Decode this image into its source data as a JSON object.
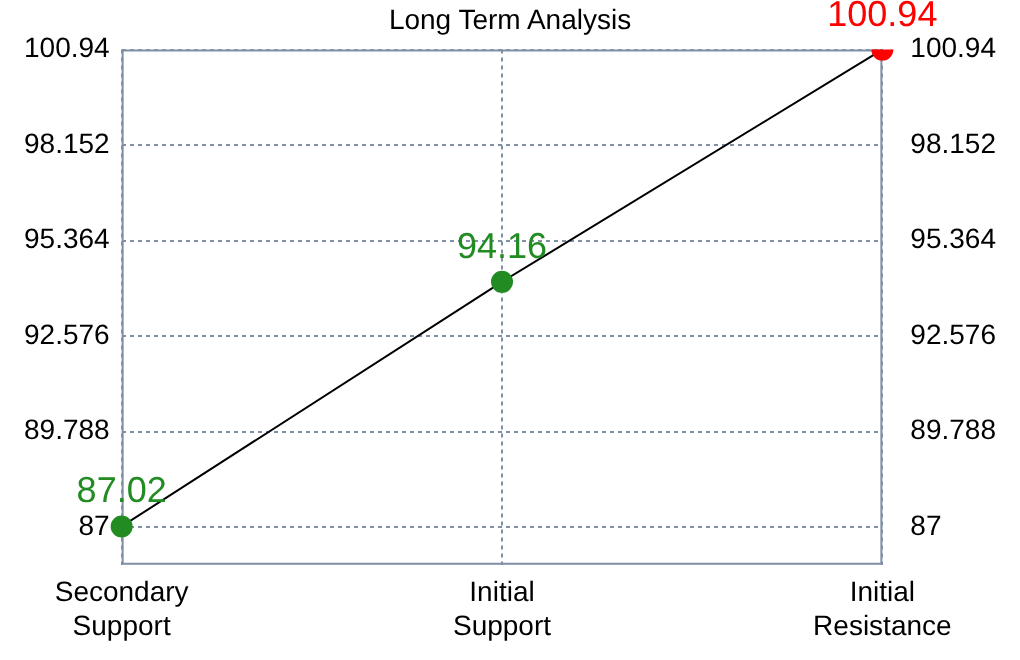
{
  "chart_data": {
    "type": "line",
    "title": "Long Term Analysis",
    "categories": [
      "Secondary Support",
      "Initial Support",
      "Initial Resistance"
    ],
    "series": [
      {
        "color": "#000000",
        "colors": [
          "#228b22",
          "#228b22",
          "#ff0000"
        ],
        "values": [
          87.02,
          94.16,
          100.94
        ]
      }
    ],
    "ylim": [
      85.9,
      100.94
    ],
    "yticks": [
      87,
      89.788,
      92.576,
      95.364,
      98.152,
      100.94
    ],
    "y2lim": [
      85.9,
      100.94
    ],
    "y2ticks": [
      87,
      89.788,
      92.576,
      95.364,
      98.152,
      100.94
    ],
    "grid": true,
    "legend": false,
    "marker": "circle",
    "line_style": "solid",
    "data_labels": true
  }
}
